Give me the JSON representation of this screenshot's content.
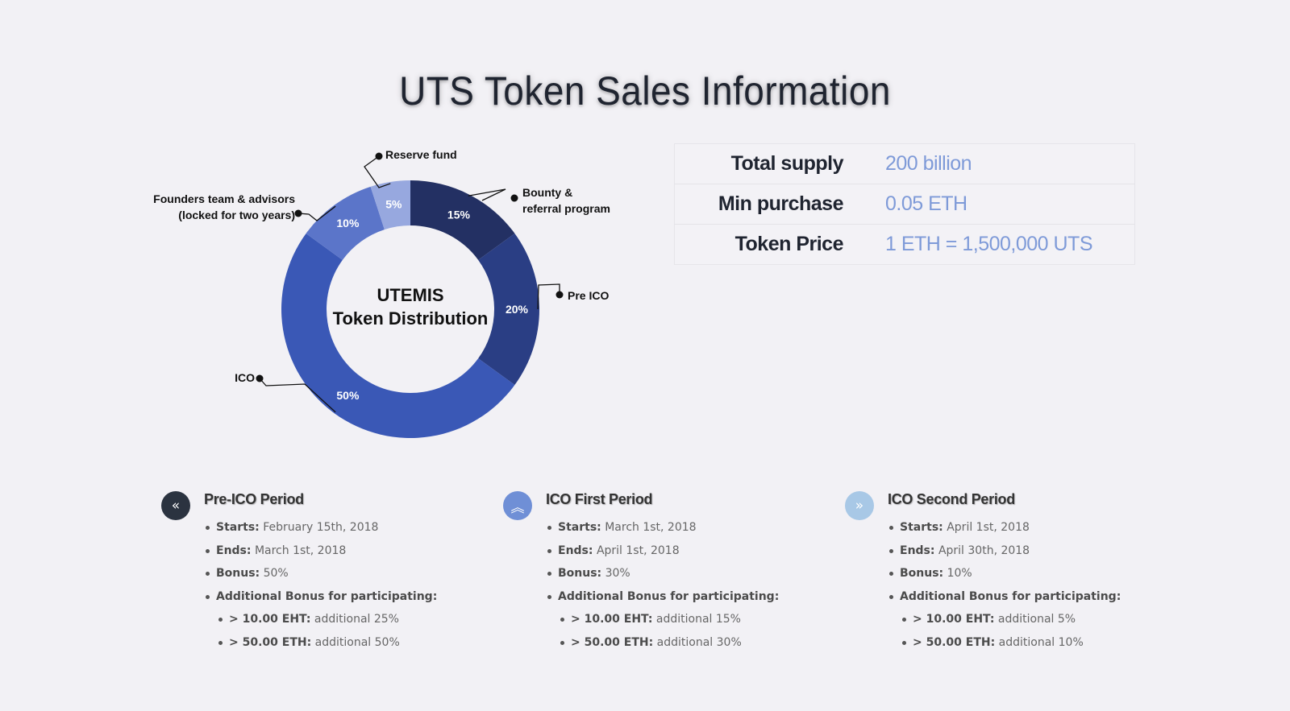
{
  "page": {
    "title": "UTS Token Sales Information"
  },
  "chart_data": {
    "type": "pie",
    "variant": "donut",
    "center_label_line1": "UTEMIS",
    "center_label_line2": "Token Distribution",
    "slices": [
      {
        "label": "Bounty & referral program",
        "label_lines": [
          "Bounty &",
          "referral program"
        ],
        "value": 15,
        "pct_label": "15%",
        "color": "#233063"
      },
      {
        "label": "Pre ICO",
        "label_lines": [
          "Pre ICO"
        ],
        "value": 20,
        "pct_label": "20%",
        "color": "#2a3e84"
      },
      {
        "label": "ICO",
        "label_lines": [
          "ICO"
        ],
        "value": 50,
        "pct_label": "50%",
        "color": "#3a58b6"
      },
      {
        "label": "Founders team & advisors (locked for two years)",
        "label_lines": [
          "Founders team & advisors",
          "(locked for two years)"
        ],
        "value": 10,
        "pct_label": "10%",
        "color": "#5b75c9"
      },
      {
        "label": "Reserve fund",
        "label_lines": [
          "Reserve fund"
        ],
        "value": 5,
        "pct_label": "5%",
        "color": "#97a8df"
      }
    ]
  },
  "info": {
    "rows": [
      {
        "label": "Total supply",
        "value": "200 billion"
      },
      {
        "label": "Min purchase",
        "value": "0.05 ETH"
      },
      {
        "label": "Token Price",
        "value": "1 ETH = 1,500,000 UTS"
      }
    ]
  },
  "periods": [
    {
      "icon": "double-chevron-left-icon",
      "icon_glyph": "«",
      "icon_color": "#2b3340",
      "title": "Pre-ICO Period",
      "starts_label": "Starts:",
      "starts": "February 15th, 2018",
      "ends_label": "Ends:",
      "ends": "March 1st, 2018",
      "bonus_label": "Bonus:",
      "bonus": "50%",
      "additional_label": "Additional Bonus for participating:",
      "tier1_label": "> 10.00 EHT:",
      "tier1": "additional 25%",
      "tier2_label": "> 50.00 ETH:",
      "tier2": "additional 50%"
    },
    {
      "icon": "double-chevron-up-icon",
      "icon_glyph": "︽",
      "icon_color": "#6f8fd6",
      "title": "ICO First Period",
      "starts_label": "Starts:",
      "starts": "March 1st, 2018",
      "ends_label": "Ends:",
      "ends": "April 1st, 2018",
      "bonus_label": "Bonus:",
      "bonus": "30%",
      "additional_label": "Additional Bonus for participating:",
      "tier1_label": "> 10.00 EHT:",
      "tier1": "additional 15%",
      "tier2_label": "> 50.00 ETH:",
      "tier2": "additional 30%"
    },
    {
      "icon": "double-chevron-right-icon",
      "icon_glyph": "»",
      "icon_color": "#a8c8e6",
      "title": "ICO Second Period",
      "starts_label": "Starts:",
      "starts": "April 1st, 2018",
      "ends_label": "Ends:",
      "ends": "April 30th, 2018",
      "bonus_label": "Bonus:",
      "bonus": "10%",
      "additional_label": "Additional Bonus for participating:",
      "tier1_label": "> 10.00 EHT:",
      "tier1": "additional 5%",
      "tier2_label": "> 50.00 ETH:",
      "tier2": "additional 10%"
    }
  ]
}
